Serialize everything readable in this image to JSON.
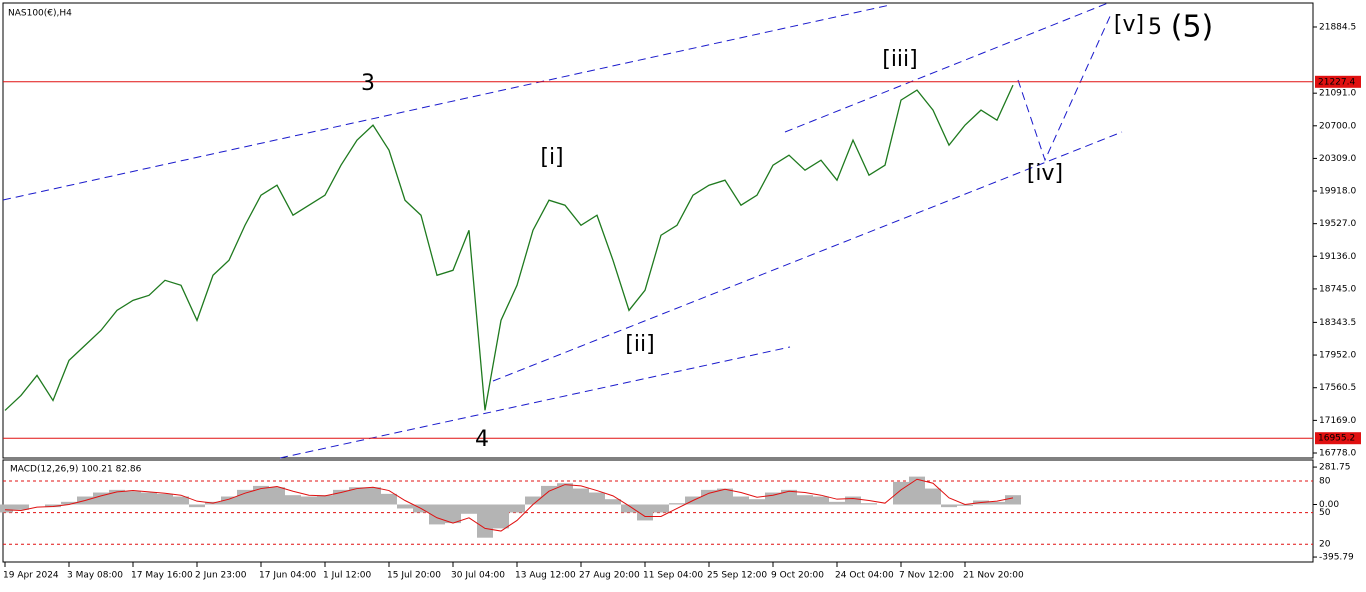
{
  "chart_data": [
    {
      "type": "line",
      "title": "NAS100(€),H4",
      "categories": [
        "19 Apr 2024",
        null,
        null,
        null,
        "3 May 08:00",
        null,
        null,
        null,
        "17 May 16:00",
        null,
        null,
        null,
        "2 Jun 23:00",
        null,
        null,
        null,
        "17 Jun 04:00",
        null,
        null,
        null,
        "1 Jul 12:00",
        null,
        null,
        null,
        "15 Jul 20:00",
        null,
        null,
        null,
        "30 Jul 04:00",
        null,
        null,
        null,
        "13 Aug 12:00",
        null,
        null,
        null,
        "27 Aug 20:00",
        null,
        null,
        null,
        "11 Sep 04:00",
        null,
        null,
        null,
        "25 Sep 12:00",
        null,
        null,
        null,
        "9 Oct 20:00",
        null,
        null,
        null,
        "24 Oct 04:00",
        null,
        null,
        null,
        "7 Nov 12:00",
        null,
        null,
        null,
        "21 Nov 20:00",
        null,
        null,
        null
      ],
      "values": [
        17288,
        17468,
        17708,
        17408,
        17888,
        18068,
        18248,
        18488,
        18608,
        18668,
        18848,
        18788,
        18368,
        18908,
        19088,
        19508,
        19868,
        19988,
        19628,
        19748,
        19868,
        20228,
        20528,
        20708,
        20408,
        19808,
        19628,
        18908,
        18968,
        19448,
        17290,
        18368,
        18788,
        19448,
        19808,
        19748,
        19508,
        19628,
        19088,
        18488,
        18728,
        19388,
        19508,
        19868,
        19988,
        20048,
        19748,
        19868,
        20228,
        20348,
        20168,
        20288,
        20048,
        20528,
        20108,
        20228,
        21008,
        21128,
        20888,
        20468,
        20708,
        20888,
        20768,
        21188
      ],
      "color": "#1f7a1f",
      "ylim": [
        16718,
        22160
      ],
      "yticks": [
        21884.5,
        {
          "value": 21091,
          "label": "21091.0"
        },
        {
          "value": 20700,
          "label": "20700.0"
        },
        {
          "value": 20309,
          "label": "20309.0"
        },
        {
          "value": 19918,
          "label": "19918.0"
        },
        {
          "value": 19527,
          "label": "19527.0"
        },
        {
          "value": 19136,
          "label": "19136.0"
        },
        {
          "value": 18745,
          "label": "18745.0"
        },
        18343.5,
        {
          "value": 17952,
          "label": "17952.0"
        },
        17560.5,
        {
          "value": 17169,
          "label": "17169.0"
        },
        {
          "value": 16778,
          "label": "16778.0"
        }
      ],
      "hlines": [
        21227.4,
        16955.2
      ],
      "hline_color": "#e01010",
      "annotations": [
        {
          "text": "3",
          "color": "#1a1acc"
        },
        {
          "text": "4",
          "color": "#1a1acc"
        },
        {
          "text": "[i]",
          "color": "#1e8c1e"
        },
        {
          "text": "[ii]",
          "color": "#1e8c1e"
        },
        {
          "text": "[iii]",
          "color": "#1e8c1e"
        },
        {
          "text": "[iv]",
          "color": "#1e8c1e"
        },
        {
          "text": "[v]",
          "color": "#1e8c1e"
        },
        {
          "text": "5",
          "color": "#1a1acc"
        },
        {
          "text": "(5)",
          "color": "#e01010"
        }
      ]
    },
    {
      "type": "macd",
      "title": "MACD(12,26,9) 100.21 82.86",
      "series": [
        {
          "color": "#b4b4b4",
          "values": [
            -60,
            -40,
            0,
            -20,
            20,
            60,
            90,
            110,
            100,
            90,
            80,
            60,
            -20,
            20,
            60,
            110,
            140,
            130,
            70,
            60,
            70,
            110,
            130,
            130,
            80,
            -30,
            -60,
            -150,
            -140,
            -70,
            -250,
            -180,
            -60,
            60,
            140,
            160,
            120,
            90,
            40,
            -60,
            -120,
            -60,
            10,
            60,
            110,
            120,
            60,
            40,
            90,
            110,
            70,
            60,
            20,
            60,
            10,
            0,
            170,
            210,
            120,
            -20,
            -10,
            30,
            20,
            70
          ]
        },
        {
          "color": "#e01010",
          "values": [
            -40,
            -45,
            -20,
            -15,
            0,
            30,
            65,
            95,
            105,
            95,
            85,
            70,
            25,
            10,
            40,
            85,
            120,
            135,
            100,
            70,
            65,
            90,
            120,
            130,
            105,
            30,
            -30,
            -100,
            -140,
            -100,
            -180,
            -200,
            -120,
            0,
            100,
            150,
            140,
            105,
            65,
            -10,
            -90,
            -90,
            -30,
            30,
            85,
            115,
            90,
            55,
            70,
            100,
            90,
            70,
            40,
            45,
            30,
            10,
            110,
            190,
            160,
            50,
            0,
            15,
            25,
            50
          ]
        }
      ],
      "ylim": [
        -418,
        320
      ],
      "yticks": [
        281.75,
        {
          "value": 0,
          "label": "0.00"
        },
        -395.79
      ],
      "levels": [
        80,
        50,
        20
      ],
      "levels_lim": [
        5,
        98
      ]
    }
  ]
}
